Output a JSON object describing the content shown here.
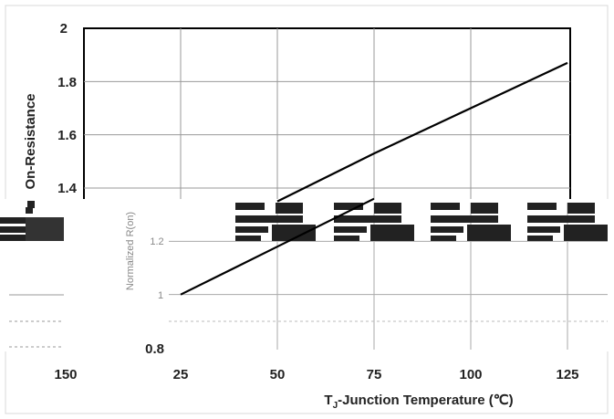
{
  "chart_data": {
    "type": "line",
    "title": "",
    "xlabel": "T",
    "xlabel_sub": "J",
    "xlabel_rest": "-Junction Temperature (℃)",
    "ylabel": "On-Resistance",
    "xlim": [
      25,
      125
    ],
    "ylim": [
      0.8,
      2.0
    ],
    "x_ticks": [
      "150",
      "25",
      "50",
      "75",
      "100",
      "125"
    ],
    "y_ticks": [
      "2",
      "1.8",
      "1.6",
      "1.4",
      "0.8"
    ],
    "ghost_ylabel": "Normalized R(on)",
    "ghost_ticks": [
      "1.2",
      "1"
    ],
    "grid": true,
    "series": [
      {
        "x": [
          50,
          75,
          100,
          125
        ],
        "y": [
          1.35,
          1.53,
          1.7,
          1.87
        ]
      },
      {
        "x": [
          25,
          50,
          75
        ],
        "y": [
          1.0,
          1.18,
          1.36
        ]
      }
    ]
  }
}
